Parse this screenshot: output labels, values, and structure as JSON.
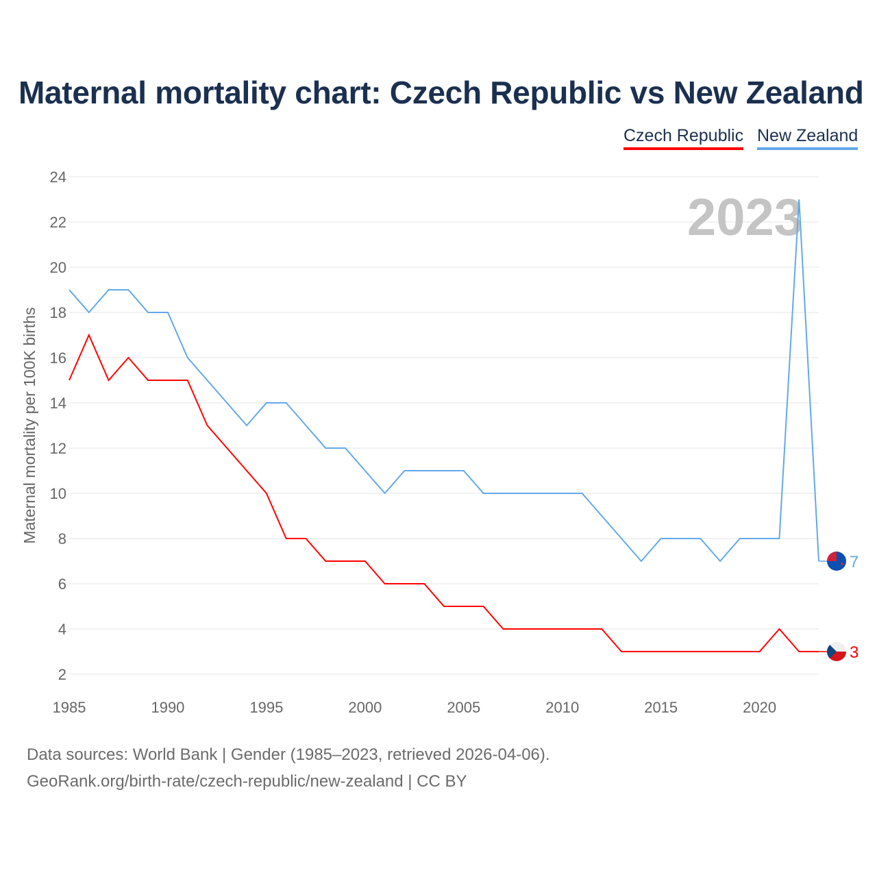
{
  "chart_data": {
    "type": "line",
    "title": "Maternal mortality chart: Czech Republic vs New Zealand",
    "xlabel": "",
    "ylabel": "Maternal mortality per 100K births",
    "xlim": [
      1985,
      2023
    ],
    "ylim": [
      2,
      24
    ],
    "x_ticks": [
      1985,
      1990,
      1995,
      2000,
      2005,
      2010,
      2015,
      2020
    ],
    "y_ticks": [
      2,
      4,
      6,
      8,
      10,
      12,
      14,
      16,
      18,
      20,
      22,
      24
    ],
    "grid": true,
    "legend_position": "top-right",
    "year_watermark": "2023",
    "x": [
      1985,
      1986,
      1987,
      1988,
      1989,
      1990,
      1991,
      1992,
      1993,
      1994,
      1995,
      1996,
      1997,
      1998,
      1999,
      2000,
      2001,
      2002,
      2003,
      2004,
      2005,
      2006,
      2007,
      2008,
      2009,
      2010,
      2011,
      2012,
      2013,
      2014,
      2015,
      2016,
      2017,
      2018,
      2019,
      2020,
      2021,
      2022,
      2023
    ],
    "series": [
      {
        "name": "Czech Republic",
        "color": "#ff0000",
        "end_label": "3",
        "values": [
          15,
          17,
          15,
          16,
          15,
          15,
          15,
          13,
          12,
          11,
          10,
          8,
          8,
          7,
          7,
          7,
          6,
          6,
          6,
          5,
          5,
          5,
          4,
          4,
          4,
          4,
          4,
          4,
          3,
          3,
          3,
          3,
          3,
          3,
          3,
          3,
          4,
          3,
          3
        ]
      },
      {
        "name": "New Zealand",
        "color": "#62a8ea",
        "end_label": "7",
        "values": [
          19,
          18,
          19,
          19,
          18,
          18,
          16,
          15,
          14,
          13,
          14,
          14,
          13,
          12,
          12,
          11,
          10,
          11,
          11,
          11,
          11,
          10,
          10,
          10,
          10,
          10,
          10,
          9,
          8,
          7,
          8,
          8,
          8,
          7,
          8,
          8,
          8,
          23,
          7
        ]
      }
    ]
  },
  "footer": {
    "source": "Data sources: World Bank | Gender (1985–2023, retrieved 2026-04-06).",
    "url": "GeoRank.org/birth-rate/czech-republic/new-zealand | CC BY"
  }
}
